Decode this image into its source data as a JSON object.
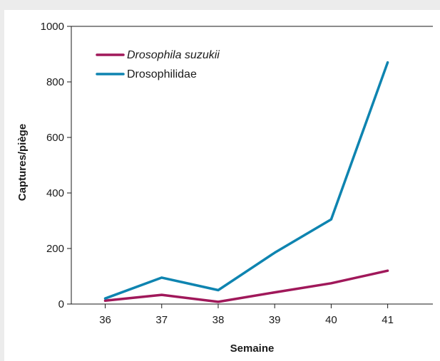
{
  "chart_data": {
    "type": "line",
    "xlabel": "Semaine",
    "ylabel": "Captures/piège",
    "x": [
      36,
      37,
      38,
      39,
      40,
      41
    ],
    "ylim": [
      0,
      1000
    ],
    "yticks": [
      0,
      200,
      400,
      600,
      800,
      1000
    ],
    "grid": false,
    "legend_position": "top-left",
    "series": [
      {
        "name": "Drosophila suzukii",
        "italic": true,
        "color": "#a0185a",
        "values": [
          12,
          33,
          8,
          42,
          75,
          120
        ]
      },
      {
        "name": "Drosophilidae",
        "italic": false,
        "color": "#0e84b0",
        "values": [
          20,
          95,
          50,
          185,
          305,
          870
        ]
      }
    ]
  }
}
